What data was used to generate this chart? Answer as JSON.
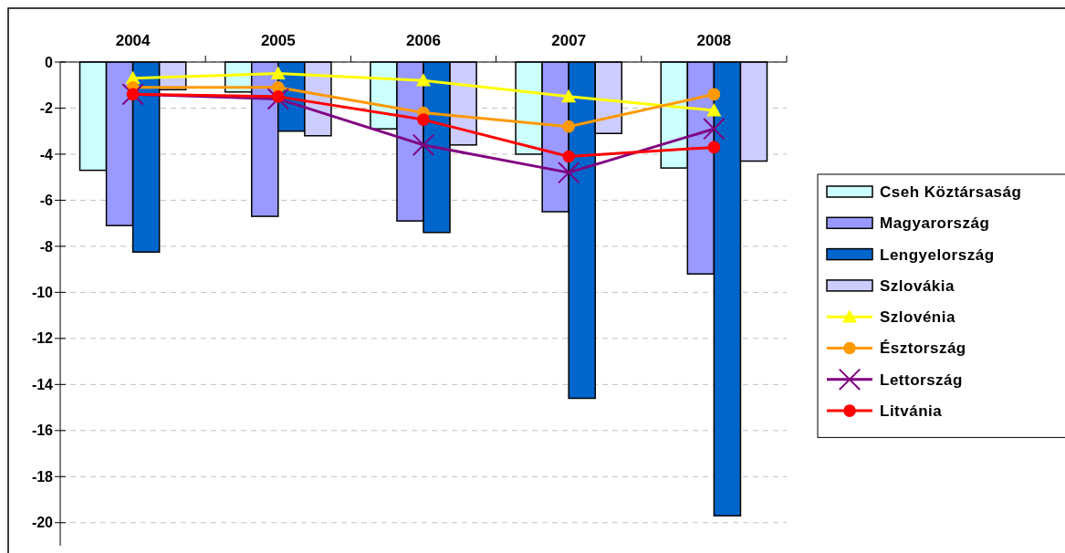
{
  "chart_data": {
    "type": "bar",
    "categories": [
      "2004",
      "2005",
      "2006",
      "2007",
      "2008"
    ],
    "ylim": [
      -21,
      0
    ],
    "yticks": [
      0,
      -2,
      -4,
      -6,
      -8,
      -10,
      -12,
      -14,
      -16,
      -18,
      -20
    ],
    "grid": "y",
    "legend": "right",
    "series": [
      {
        "name": "Cseh Köztársaság",
        "color": "#ccffff",
        "values": [
          -4.7,
          -1.3,
          -2.9,
          -4.0,
          -4.6
        ]
      },
      {
        "name": "Magyarország",
        "color": "#9999ff",
        "values": [
          -7.1,
          -6.7,
          -6.9,
          -6.5,
          -9.2
        ]
      },
      {
        "name": "Lengyelország",
        "color": "#0066cc",
        "values": [
          -8.25,
          -3.0,
          -7.4,
          -14.6,
          -19.7
        ]
      },
      {
        "name": "Szlovákia",
        "color": "#ccccff",
        "values": [
          -1.2,
          -3.2,
          -3.6,
          -3.1,
          -4.3
        ]
      },
      {
        "name": "Szlovénia",
        "type": "line",
        "marker": "triangle",
        "color": "#ffff00",
        "values": [
          -0.7,
          -0.5,
          -0.8,
          -1.5,
          -2.1
        ]
      },
      {
        "name": "Észtország",
        "type": "line",
        "marker": "circle",
        "color": "#ff9900",
        "values": [
          -1.1,
          -1.1,
          -2.2,
          -2.8,
          -1.4
        ]
      },
      {
        "name": "Lettország",
        "type": "line",
        "marker": "cross",
        "color": "#800080",
        "values": [
          -1.4,
          -1.6,
          -3.6,
          -4.8,
          -2.9
        ]
      },
      {
        "name": "Litvánia",
        "type": "line",
        "marker": "circle",
        "color": "#ff0000",
        "values": [
          -1.4,
          -1.5,
          -2.5,
          -4.1,
          -3.7
        ]
      }
    ]
  }
}
